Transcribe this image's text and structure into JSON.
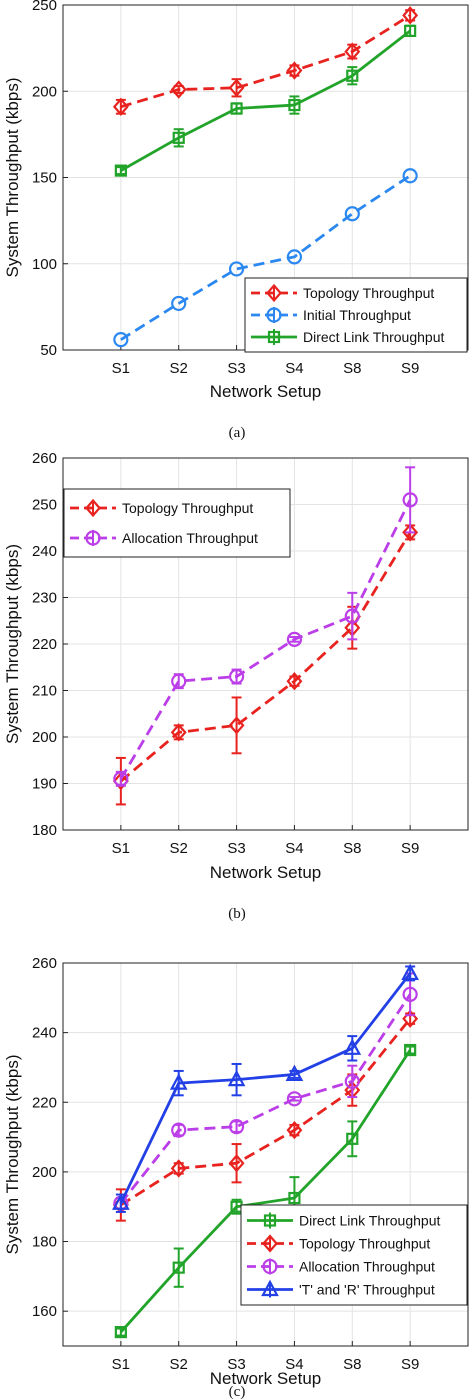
{
  "chart_data": [
    {
      "type": "line",
      "caption": "(a)",
      "categories": [
        "S1",
        "S2",
        "S3",
        "S4",
        "S8",
        "S9"
      ],
      "xlabel": "Network Setup",
      "ylabel": "System Throughput (kbps)",
      "ylim": [
        50,
        250
      ],
      "yticks": [
        50,
        100,
        150,
        200,
        250
      ],
      "grid": true,
      "legend_position": "bottom-right",
      "series": [
        {
          "name": "Topology Throughput",
          "color": "#e8231f",
          "dash": "dashed",
          "marker": "diamond",
          "values": [
            191,
            201,
            202,
            212,
            223,
            244
          ],
          "err": [
            4,
            2,
            5,
            3,
            4,
            3
          ]
        },
        {
          "name": "Initial Throughput",
          "color": "#2b88f0",
          "dash": "dashed",
          "marker": "circle",
          "values": [
            56,
            77,
            97,
            104,
            129,
            151
          ],
          "err": [
            0,
            0,
            0,
            0,
            0,
            0
          ]
        },
        {
          "name": "Direct Link Throughput",
          "color": "#22a42a",
          "dash": "solid",
          "marker": "square",
          "values": [
            154,
            173,
            190,
            192,
            209,
            235
          ],
          "err": [
            2,
            5,
            3,
            5,
            5,
            3
          ]
        }
      ]
    },
    {
      "type": "line",
      "caption": "(b)",
      "categories": [
        "S1",
        "S2",
        "S3",
        "S4",
        "S8",
        "S9"
      ],
      "xlabel": "Network Setup",
      "ylabel": "System Throughput (kbps)",
      "ylim": [
        180,
        260
      ],
      "yticks": [
        180,
        190,
        200,
        210,
        220,
        230,
        240,
        250,
        260
      ],
      "grid": true,
      "legend_position": "top-left",
      "series": [
        {
          "name": "Topology Throughput",
          "color": "#e8231f",
          "dash": "dashed",
          "marker": "diamond",
          "values": [
            190.5,
            201,
            202.5,
            212,
            223.5,
            244
          ],
          "err": [
            5,
            1.5,
            6,
            1,
            4.5,
            1.5
          ]
        },
        {
          "name": "Allocation Throughput",
          "color": "#bb3ee8",
          "dash": "dashed",
          "marker": "circle",
          "values": [
            191,
            212,
            213,
            221,
            226,
            251
          ],
          "err": [
            1.5,
            1.5,
            1.5,
            0.5,
            5,
            7
          ]
        }
      ]
    },
    {
      "type": "line",
      "caption": "(c)",
      "categories": [
        "S1",
        "S2",
        "S3",
        "S4",
        "S8",
        "S9"
      ],
      "xlabel": "Network Setup",
      "ylabel": "System Throughput (kbps)",
      "ylim": [
        150,
        260
      ],
      "yticks": [
        160,
        180,
        200,
        220,
        240,
        260
      ],
      "grid": true,
      "legend_position": "bottom-right",
      "series": [
        {
          "name": "Direct Link Throughput",
          "color": "#22a42a",
          "dash": "solid",
          "marker": "square",
          "values": [
            154,
            172.5,
            190,
            192.5,
            209.5,
            235
          ],
          "err": [
            1,
            5.5,
            2,
            6,
            5,
            1
          ]
        },
        {
          "name": "Topology Throughput",
          "color": "#e8231f",
          "dash": "dashed",
          "marker": "diamond",
          "values": [
            190.5,
            201,
            202.5,
            212,
            223.5,
            244
          ],
          "err": [
            4.5,
            1.5,
            5.5,
            1.5,
            4.5,
            1.5
          ]
        },
        {
          "name": "Allocation Throughput",
          "color": "#bb3ee8",
          "dash": "dashed",
          "marker": "circle",
          "values": [
            191,
            212,
            213,
            221,
            226,
            251
          ],
          "err": [
            1.5,
            1.5,
            1.5,
            0.5,
            4.5,
            6
          ]
        },
        {
          "name": "'T' and 'R' Throughput",
          "color": "#2340e6",
          "dash": "solid",
          "marker": "triangle",
          "values": [
            191,
            225.5,
            226.5,
            228,
            235.5,
            257
          ],
          "err": [
            2.5,
            3.5,
            4.5,
            1,
            3.5,
            2
          ]
        }
      ]
    }
  ]
}
